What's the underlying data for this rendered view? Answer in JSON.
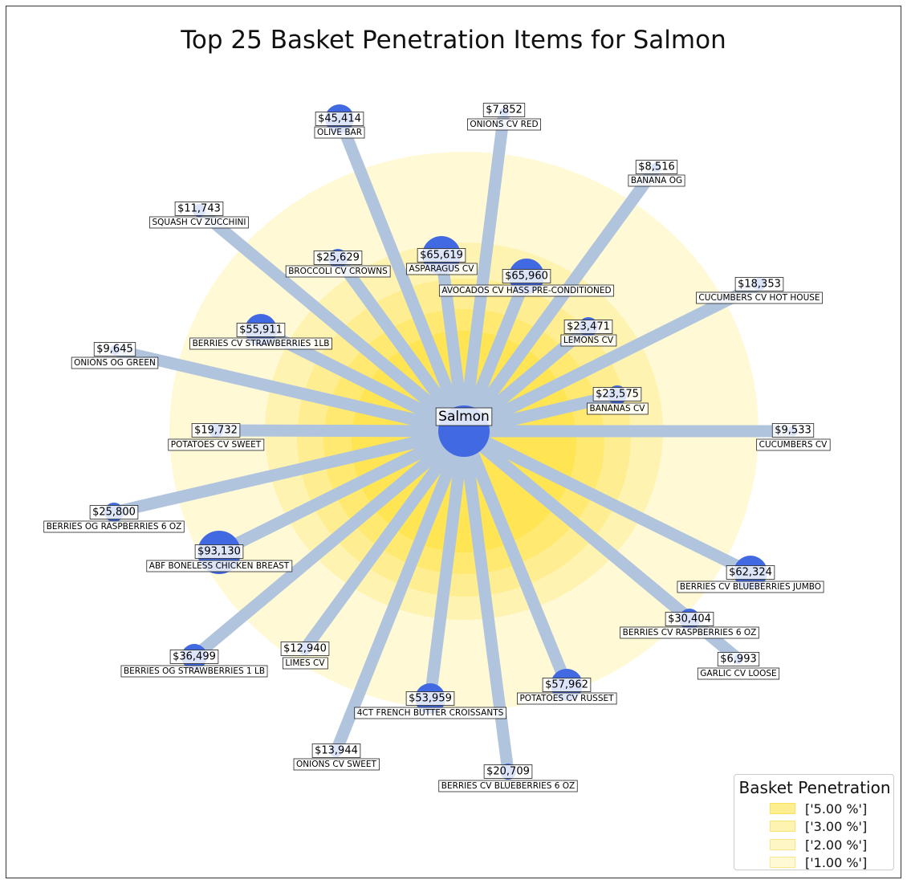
{
  "chart_data": {
    "type": "network",
    "title": "Top 25 Basket Penetration Items for Salmon",
    "center": {
      "label": "Salmon"
    },
    "items": [
      {
        "name": "OLIVE BAR",
        "value": "$45,414"
      },
      {
        "name": "ONIONS CV RED",
        "value": "$7,852"
      },
      {
        "name": "BANANA OG",
        "value": "$8,516"
      },
      {
        "name": "SQUASH CV ZUCCHINI",
        "value": "$11,743"
      },
      {
        "name": "BROCCOLI CV CROWNS",
        "value": "$25,629"
      },
      {
        "name": "ASPARAGUS CV",
        "value": "$65,619"
      },
      {
        "name": "AVOCADOS CV HASS PRE-CONDITIONED",
        "value": "$65,960"
      },
      {
        "name": "CUCUMBERS CV HOT HOUSE",
        "value": "$18,353"
      },
      {
        "name": "BERRIES CV STRAWBERRIES 1LB",
        "value": "$55,911"
      },
      {
        "name": "LEMONS CV",
        "value": "$23,471"
      },
      {
        "name": "ONIONS OG GREEN",
        "value": "$9,645"
      },
      {
        "name": "BANANAS CV",
        "value": "$23,575"
      },
      {
        "name": "POTATOES CV SWEET",
        "value": "$19,732"
      },
      {
        "name": "CUCUMBERS CV",
        "value": "$9,533"
      },
      {
        "name": "BERRIES OG RASPBERRIES 6 OZ",
        "value": "$25,800"
      },
      {
        "name": "ABF BONELESS CHICKEN BREAST",
        "value": "$93,130"
      },
      {
        "name": "BERRIES CV BLUEBERRIES JUMBO",
        "value": "$62,324"
      },
      {
        "name": "BERRIES CV RASPBERRIES 6 OZ",
        "value": "$30,404"
      },
      {
        "name": "BERRIES OG STRAWBERRIES 1 LB",
        "value": "$36,499"
      },
      {
        "name": "LIMES CV",
        "value": "$12,940"
      },
      {
        "name": "GARLIC CV LOOSE",
        "value": "$6,993"
      },
      {
        "name": "POTATOES CV RUSSET",
        "value": "$57,962"
      },
      {
        "name": "4CT FRENCH BUTTER CROISSANTS",
        "value": "$53,959"
      },
      {
        "name": "ONIONS CV SWEET",
        "value": "$13,944"
      },
      {
        "name": "BERRIES CV BLUEBERRIES 6 OZ",
        "value": "$20,709"
      }
    ],
    "legend": {
      "title": "Basket Penetration",
      "entries": [
        "['5.00 %']",
        "['3.00 %']",
        "['2.00 %']",
        "['1.00 %']"
      ]
    }
  },
  "colors": {
    "node": "#4169e1",
    "edge": "#b0c4de",
    "ring": "#ffe033",
    "label_bg": "#ffffff"
  }
}
